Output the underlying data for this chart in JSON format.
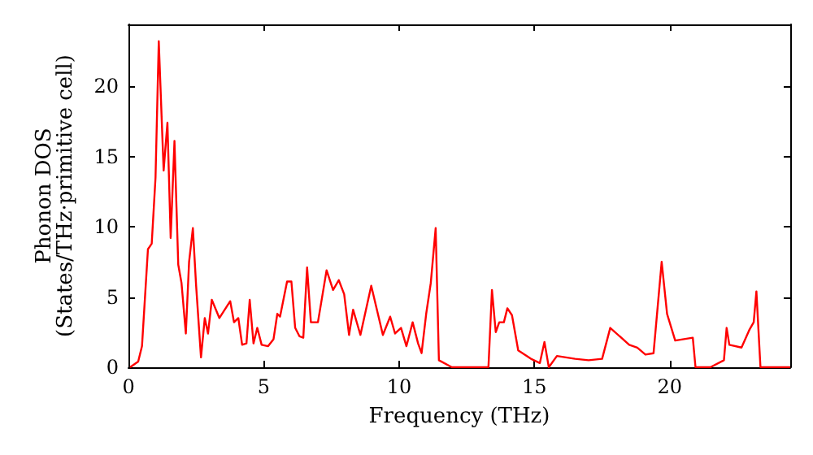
{
  "chart_data": {
    "type": "line",
    "xlabel": "Frequency (THz)",
    "ylabel": "Phonon DOS\n(States/THz·primitive cell)",
    "xlim": [
      0,
      24.45
    ],
    "xticks": [
      0,
      5,
      10,
      15,
      20
    ],
    "ylim": [
      0,
      24.4
    ],
    "yticks": [
      0,
      5,
      10,
      15,
      20
    ],
    "grid": false,
    "marker": "none",
    "line_style": "solid",
    "series": [
      {
        "color": "#ff0000",
        "x": [
          0.06,
          0.36,
          0.5,
          0.72,
          0.86,
          1.0,
          1.12,
          1.3,
          1.44,
          1.56,
          1.7,
          1.84,
          1.96,
          2.12,
          2.24,
          2.38,
          2.5,
          2.68,
          2.82,
          2.94,
          3.08,
          3.36,
          3.76,
          3.9,
          4.06,
          4.2,
          4.36,
          4.48,
          4.62,
          4.76,
          4.92,
          5.16,
          5.36,
          5.5,
          5.6,
          5.86,
          6.02,
          6.16,
          6.32,
          6.46,
          6.6,
          6.74,
          7.0,
          7.32,
          7.56,
          7.77,
          7.97,
          8.15,
          8.3,
          8.57,
          8.97,
          9.4,
          9.67,
          9.85,
          10.07,
          10.27,
          10.5,
          10.7,
          10.83,
          11.0,
          11.17,
          11.35,
          11.47,
          11.95,
          13.3,
          13.43,
          13.57,
          13.7,
          13.87,
          14.0,
          14.17,
          14.4,
          14.87,
          15.2,
          15.37,
          15.53,
          15.83,
          16.5,
          17.0,
          17.5,
          17.8,
          18.5,
          18.8,
          19.1,
          19.4,
          19.7,
          19.9,
          20.2,
          20.85,
          20.95,
          21.5,
          22.0,
          22.1,
          22.2,
          22.65,
          22.95,
          23.1,
          23.2,
          23.35,
          24.45
        ],
        "values": [
          0,
          0.4,
          1.5,
          8.4,
          8.8,
          13.5,
          23.2,
          14,
          17.4,
          9.2,
          16.1,
          7.3,
          6,
          2.4,
          7.5,
          9.9,
          5.8,
          0.7,
          3.5,
          2.4,
          4.8,
          3.5,
          4.7,
          3.2,
          3.5,
          1.6,
          1.7,
          4.8,
          1.7,
          2.8,
          1.6,
          1.5,
          2,
          3.8,
          3.6,
          6.1,
          6.1,
          2.8,
          2.2,
          2.1,
          7.1,
          3.2,
          3.2,
          6.9,
          5.5,
          6.2,
          5.2,
          2.3,
          4.1,
          2.3,
          5.8,
          2.3,
          3.6,
          2.4,
          2.8,
          1.5,
          3.2,
          1.7,
          1,
          3.8,
          6,
          9.9,
          0.5,
          0,
          0,
          5.5,
          2.5,
          3.2,
          3.2,
          4.2,
          3.7,
          1.2,
          0.6,
          0.3,
          1.8,
          0,
          0.8,
          0.6,
          0.5,
          0.6,
          2.8,
          1.6,
          1.4,
          0.9,
          1.0,
          7.5,
          3.8,
          1.9,
          2.1,
          0,
          0,
          0.5,
          2.8,
          1.6,
          1.4,
          2.7,
          3.2,
          5.4,
          0,
          0
        ]
      }
    ]
  }
}
